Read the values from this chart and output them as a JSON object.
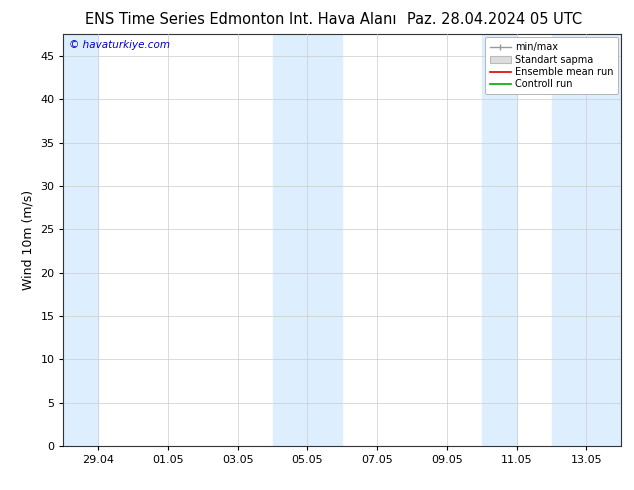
{
  "title_left": "ENS Time Series Edmonton Int. Hava Alanı",
  "title_right": "Paz. 28.04.2024 05 UTC",
  "ylabel": "Wind 10m (m/s)",
  "watermark": "© havaturkiye.com",
  "watermark_color": "#0000cc",
  "ylim": [
    0,
    47.5
  ],
  "yticks": [
    0,
    5,
    10,
    15,
    20,
    25,
    30,
    35,
    40,
    45
  ],
  "xtick_labels": [
    "29.04",
    "01.05",
    "03.05",
    "05.05",
    "07.05",
    "09.05",
    "11.05",
    "13.05"
  ],
  "xtick_days_from_start": [
    1,
    3,
    5,
    7,
    9,
    11,
    13,
    15
  ],
  "xlim_days": [
    0,
    16
  ],
  "shaded_band_color": "#ddeeff",
  "background_color": "#ffffff",
  "plot_bg_color": "#ffffff",
  "legend_entries": [
    "min/max",
    "Standart sapma",
    "Ensemble mean run",
    "Controll run"
  ],
  "legend_colors_line": [
    "#aaaaaa",
    "#cccccc",
    "#ff0000",
    "#00bb00"
  ],
  "title_fontsize": 10.5,
  "ylabel_fontsize": 9,
  "tick_fontsize": 8,
  "shaded_pairs_days": [
    [
      0,
      1
    ],
    [
      6,
      8
    ],
    [
      12,
      13
    ],
    [
      14,
      16
    ]
  ],
  "grid_color": "#cccccc",
  "grid_linewidth": 0.5
}
